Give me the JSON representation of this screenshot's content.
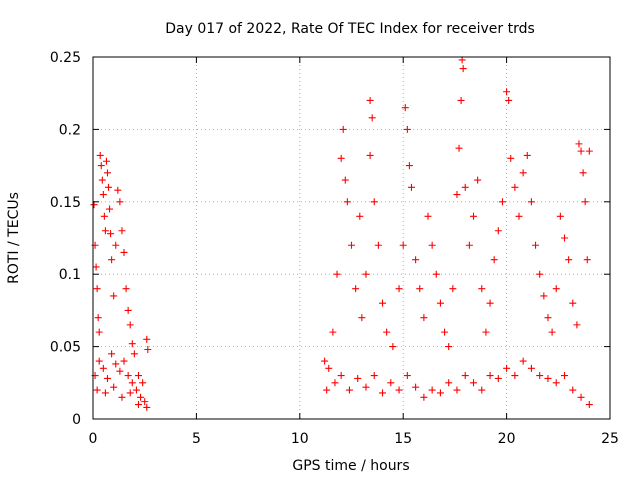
{
  "chart_data": {
    "type": "scatter",
    "title": "Day 017 of 2022, Rate Of TEC Index for receiver trds",
    "xlabel": "GPS time / hours",
    "ylabel": "ROTI / TECUs",
    "xlim": [
      0,
      25
    ],
    "ylim": [
      0,
      0.25
    ],
    "x_ticks": [
      "0",
      "5",
      "10",
      "15",
      "20",
      "25"
    ],
    "y_ticks": [
      "0",
      "0.05",
      "0.1",
      "0.15",
      "0.2",
      "0.25"
    ],
    "grid": true,
    "marker": "plus",
    "color": "#ff0000",
    "points": [
      [
        0.05,
        0.148
      ],
      [
        0.1,
        0.12
      ],
      [
        0.15,
        0.105
      ],
      [
        0.2,
        0.09
      ],
      [
        0.25,
        0.07
      ],
      [
        0.3,
        0.06
      ],
      [
        0.35,
        0.182
      ],
      [
        0.4,
        0.175
      ],
      [
        0.45,
        0.165
      ],
      [
        0.5,
        0.155
      ],
      [
        0.55,
        0.14
      ],
      [
        0.6,
        0.13
      ],
      [
        0.65,
        0.178
      ],
      [
        0.7,
        0.17
      ],
      [
        0.75,
        0.16
      ],
      [
        0.8,
        0.145
      ],
      [
        0.85,
        0.128
      ],
      [
        0.9,
        0.11
      ],
      [
        1.0,
        0.085
      ],
      [
        1.1,
        0.12
      ],
      [
        1.2,
        0.158
      ],
      [
        1.3,
        0.15
      ],
      [
        1.4,
        0.13
      ],
      [
        1.5,
        0.115
      ],
      [
        1.6,
        0.09
      ],
      [
        1.7,
        0.075
      ],
      [
        1.8,
        0.065
      ],
      [
        1.9,
        0.052
      ],
      [
        2.0,
        0.045
      ],
      [
        2.2,
        0.03
      ],
      [
        2.4,
        0.025
      ],
      [
        2.6,
        0.055
      ],
      [
        2.65,
        0.048
      ],
      [
        0.1,
        0.03
      ],
      [
        0.3,
        0.04
      ],
      [
        0.5,
        0.035
      ],
      [
        0.7,
        0.028
      ],
      [
        0.9,
        0.045
      ],
      [
        1.1,
        0.038
      ],
      [
        1.3,
        0.033
      ],
      [
        1.5,
        0.04
      ],
      [
        1.7,
        0.03
      ],
      [
        1.9,
        0.025
      ],
      [
        2.1,
        0.02
      ],
      [
        2.3,
        0.015
      ],
      [
        2.5,
        0.012
      ],
      [
        0.2,
        0.02
      ],
      [
        0.6,
        0.018
      ],
      [
        1.0,
        0.022
      ],
      [
        1.4,
        0.015
      ],
      [
        1.8,
        0.018
      ],
      [
        2.2,
        0.01
      ],
      [
        2.6,
        0.008
      ],
      [
        11.2,
        0.04
      ],
      [
        11.4,
        0.035
      ],
      [
        11.6,
        0.06
      ],
      [
        11.8,
        0.1
      ],
      [
        12.0,
        0.18
      ],
      [
        12.1,
        0.2
      ],
      [
        12.2,
        0.165
      ],
      [
        12.3,
        0.15
      ],
      [
        12.5,
        0.12
      ],
      [
        12.7,
        0.09
      ],
      [
        12.9,
        0.14
      ],
      [
        13.0,
        0.07
      ],
      [
        13.2,
        0.1
      ],
      [
        13.4,
        0.22
      ],
      [
        13.5,
        0.208
      ],
      [
        13.4,
        0.182
      ],
      [
        13.6,
        0.15
      ],
      [
        13.8,
        0.12
      ],
      [
        14.0,
        0.08
      ],
      [
        14.2,
        0.06
      ],
      [
        14.5,
        0.05
      ],
      [
        14.8,
        0.09
      ],
      [
        15.0,
        0.12
      ],
      [
        15.1,
        0.215
      ],
      [
        15.2,
        0.2
      ],
      [
        15.3,
        0.175
      ],
      [
        15.4,
        0.16
      ],
      [
        15.6,
        0.11
      ],
      [
        15.8,
        0.09
      ],
      [
        16.0,
        0.07
      ],
      [
        16.2,
        0.14
      ],
      [
        16.4,
        0.12
      ],
      [
        16.6,
        0.1
      ],
      [
        16.8,
        0.08
      ],
      [
        17.0,
        0.06
      ],
      [
        17.2,
        0.05
      ],
      [
        17.4,
        0.09
      ],
      [
        17.6,
        0.155
      ],
      [
        17.7,
        0.187
      ],
      [
        17.8,
        0.22
      ],
      [
        17.85,
        0.248
      ],
      [
        17.9,
        0.242
      ],
      [
        18.0,
        0.16
      ],
      [
        18.2,
        0.12
      ],
      [
        18.4,
        0.14
      ],
      [
        18.6,
        0.165
      ],
      [
        18.8,
        0.09
      ],
      [
        19.0,
        0.06
      ],
      [
        19.2,
        0.08
      ],
      [
        19.4,
        0.11
      ],
      [
        19.6,
        0.13
      ],
      [
        19.8,
        0.15
      ],
      [
        20.0,
        0.226
      ],
      [
        20.1,
        0.22
      ],
      [
        20.2,
        0.18
      ],
      [
        20.4,
        0.16
      ],
      [
        20.6,
        0.14
      ],
      [
        20.8,
        0.17
      ],
      [
        21.0,
        0.182
      ],
      [
        21.2,
        0.15
      ],
      [
        21.4,
        0.12
      ],
      [
        21.6,
        0.1
      ],
      [
        21.8,
        0.085
      ],
      [
        22.0,
        0.07
      ],
      [
        22.2,
        0.06
      ],
      [
        22.4,
        0.09
      ],
      [
        22.6,
        0.14
      ],
      [
        22.8,
        0.125
      ],
      [
        23.0,
        0.11
      ],
      [
        23.2,
        0.08
      ],
      [
        23.4,
        0.065
      ],
      [
        23.5,
        0.19
      ],
      [
        23.6,
        0.185
      ],
      [
        23.7,
        0.17
      ],
      [
        23.8,
        0.15
      ],
      [
        23.9,
        0.11
      ],
      [
        24.0,
        0.185
      ],
      [
        11.3,
        0.02
      ],
      [
        11.7,
        0.025
      ],
      [
        12.0,
        0.03
      ],
      [
        12.4,
        0.02
      ],
      [
        12.8,
        0.028
      ],
      [
        13.2,
        0.022
      ],
      [
        13.6,
        0.03
      ],
      [
        14.0,
        0.018
      ],
      [
        14.4,
        0.025
      ],
      [
        14.8,
        0.02
      ],
      [
        15.2,
        0.03
      ],
      [
        15.6,
        0.022
      ],
      [
        16.0,
        0.015
      ],
      [
        16.4,
        0.02
      ],
      [
        16.8,
        0.018
      ],
      [
        17.2,
        0.025
      ],
      [
        17.6,
        0.02
      ],
      [
        18.0,
        0.03
      ],
      [
        18.4,
        0.025
      ],
      [
        18.8,
        0.02
      ],
      [
        19.2,
        0.03
      ],
      [
        19.6,
        0.028
      ],
      [
        20.0,
        0.035
      ],
      [
        20.4,
        0.03
      ],
      [
        20.8,
        0.04
      ],
      [
        21.2,
        0.035
      ],
      [
        21.6,
        0.03
      ],
      [
        22.0,
        0.028
      ],
      [
        22.4,
        0.025
      ],
      [
        22.8,
        0.03
      ],
      [
        23.2,
        0.02
      ],
      [
        23.6,
        0.015
      ],
      [
        24.0,
        0.01
      ]
    ]
  }
}
